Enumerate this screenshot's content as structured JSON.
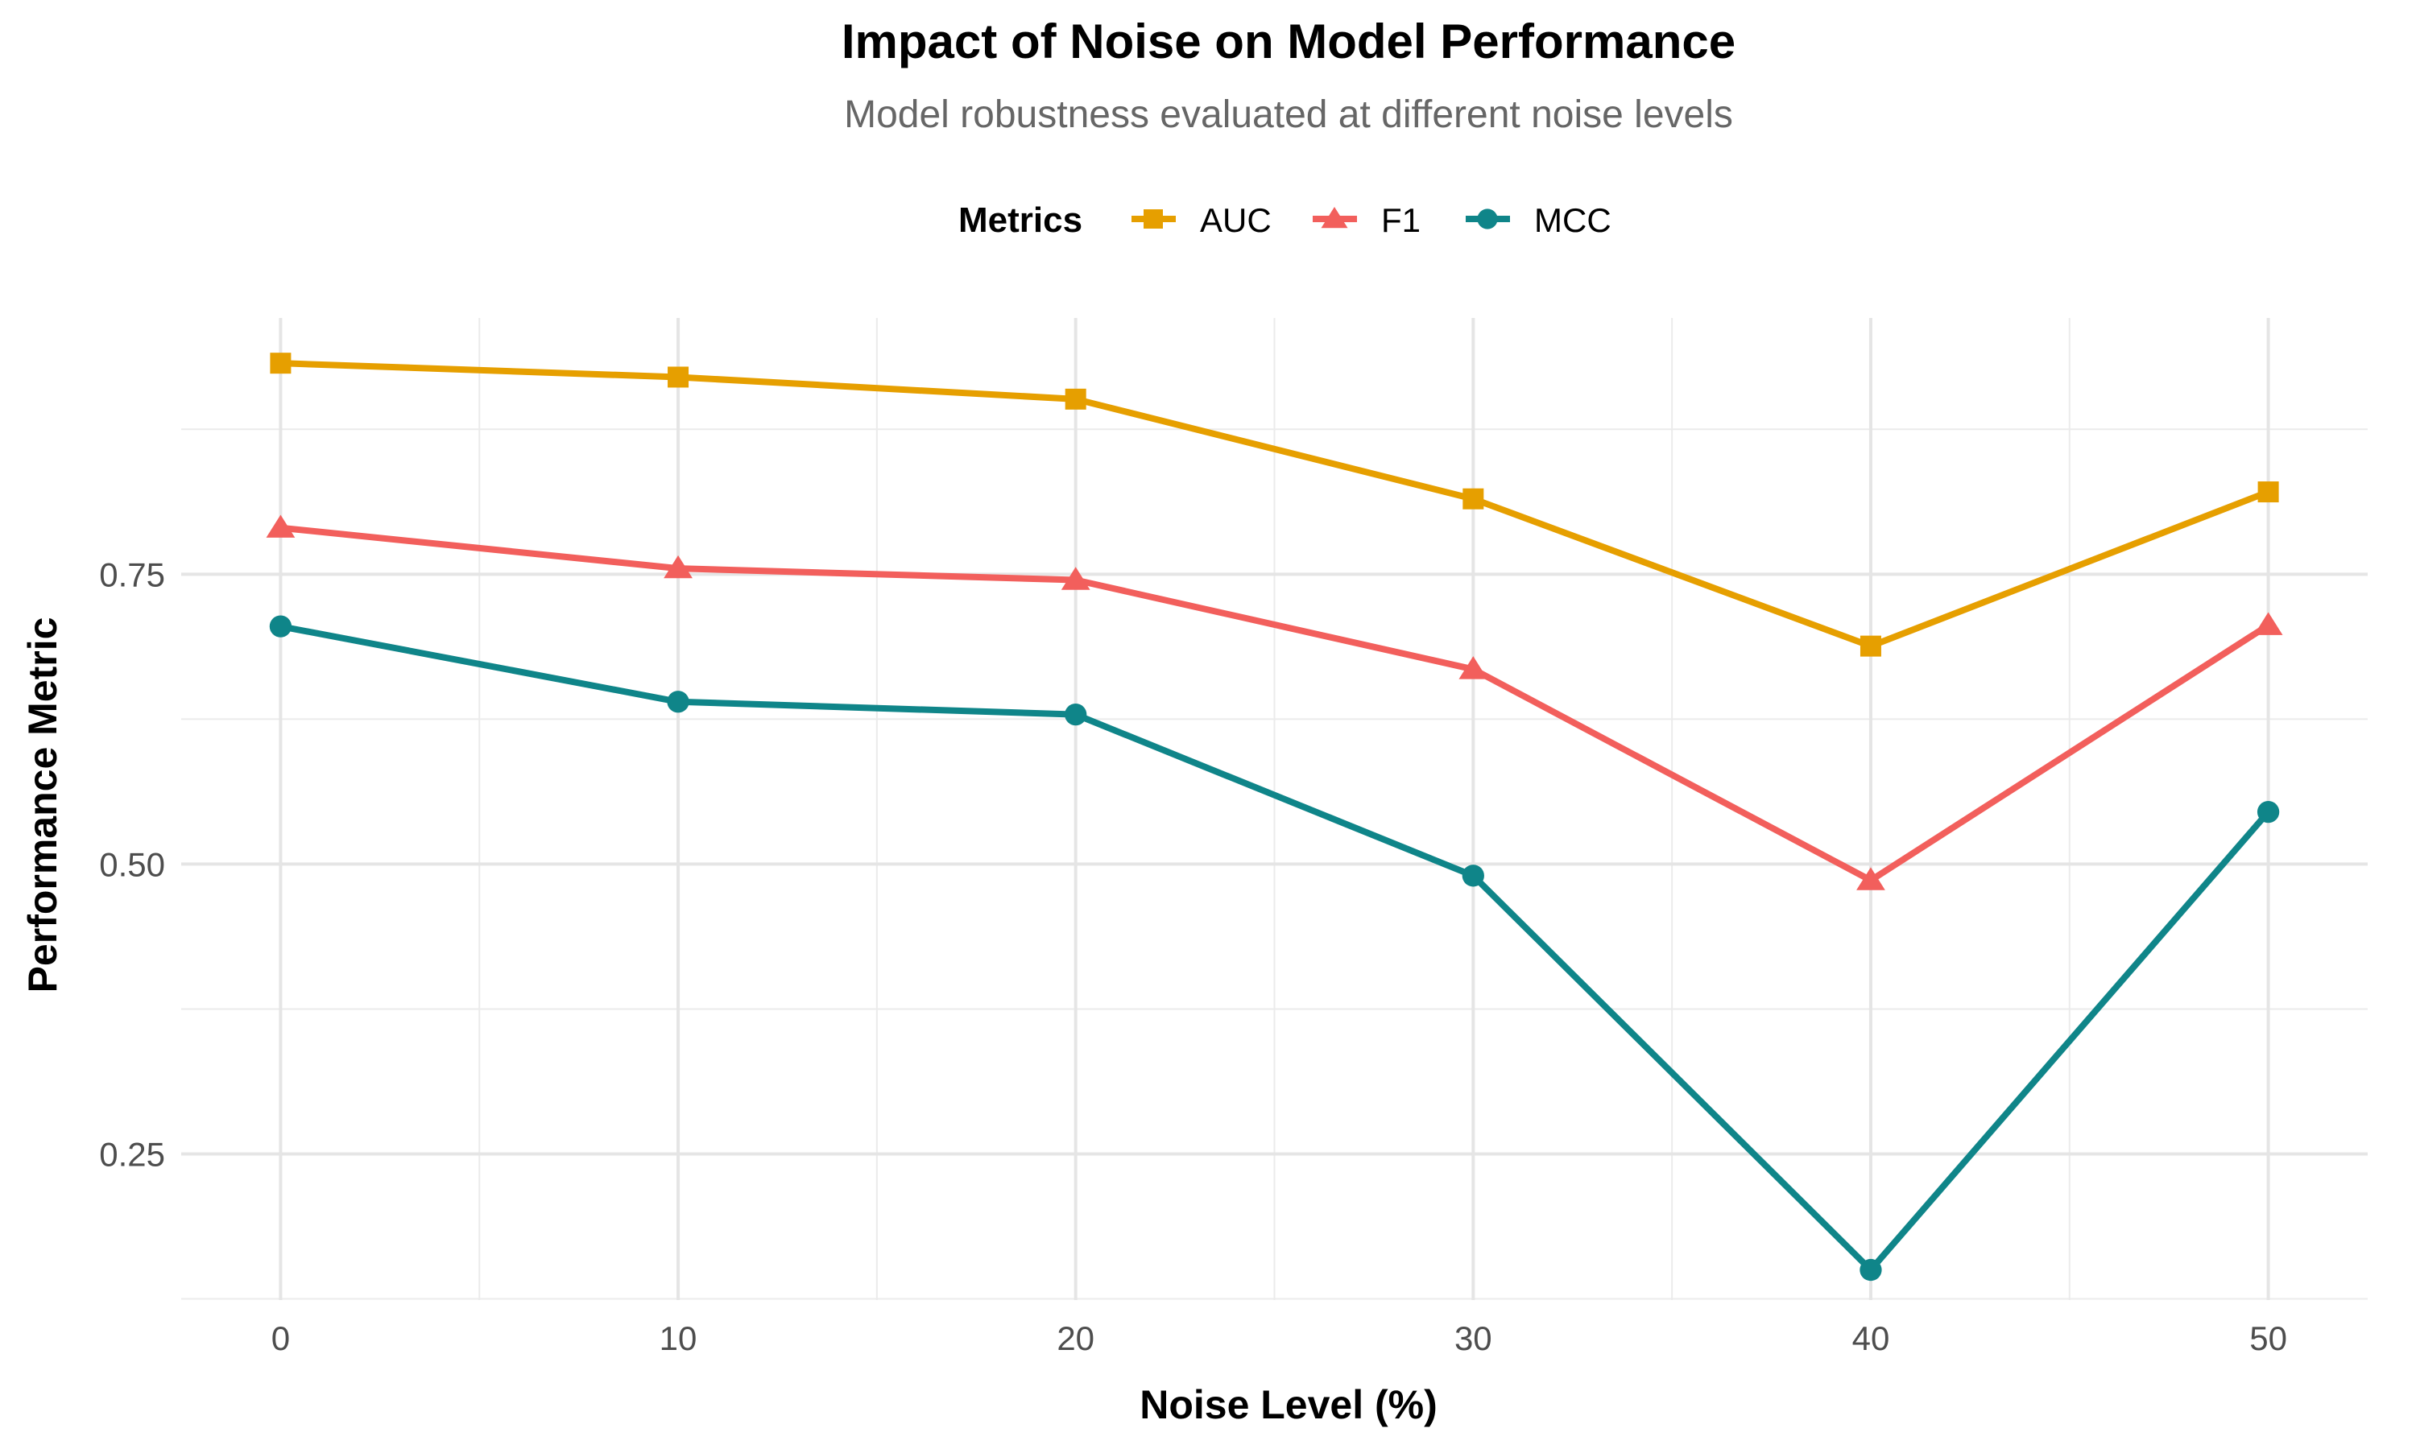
{
  "chart_data": {
    "type": "line",
    "title": "Impact of Noise on Model Performance",
    "subtitle": "Model robustness evaluated at different noise levels",
    "xlabel": "Noise Level (%)",
    "ylabel": "Performance Metric",
    "legend": {
      "title": "Metrics",
      "placement": "top-center"
    },
    "grid": true,
    "x": [
      0,
      10,
      20,
      30,
      40,
      50
    ],
    "xlim": [
      -2.5,
      52.5
    ],
    "ylim": [
      0.124,
      0.971
    ],
    "x_ticks": [
      0,
      10,
      20,
      30,
      40,
      50
    ],
    "x_tick_labels": [
      "0",
      "10",
      "20",
      "30",
      "40",
      "50"
    ],
    "x_minor_ticks": [
      5,
      15,
      25,
      35,
      45
    ],
    "y_ticks": [
      0.25,
      0.5,
      0.75
    ],
    "y_tick_labels": [
      "0.25",
      "0.50",
      "0.75"
    ],
    "y_minor_ticks": [
      0.125,
      0.375,
      0.625,
      0.875
    ],
    "series": [
      {
        "name": "AUC",
        "color": "#E69F00",
        "marker": "square",
        "values": [
          0.932,
          0.92,
          0.901,
          0.815,
          0.688,
          0.821
        ]
      },
      {
        "name": "F1",
        "color": "#F25F5C",
        "marker": "triangle",
        "values": [
          0.79,
          0.755,
          0.745,
          0.668,
          0.486,
          0.706
        ]
      },
      {
        "name": "MCC",
        "color": "#0F8589",
        "marker": "circle",
        "values": [
          0.705,
          0.64,
          0.629,
          0.49,
          0.15,
          0.545
        ]
      }
    ]
  }
}
